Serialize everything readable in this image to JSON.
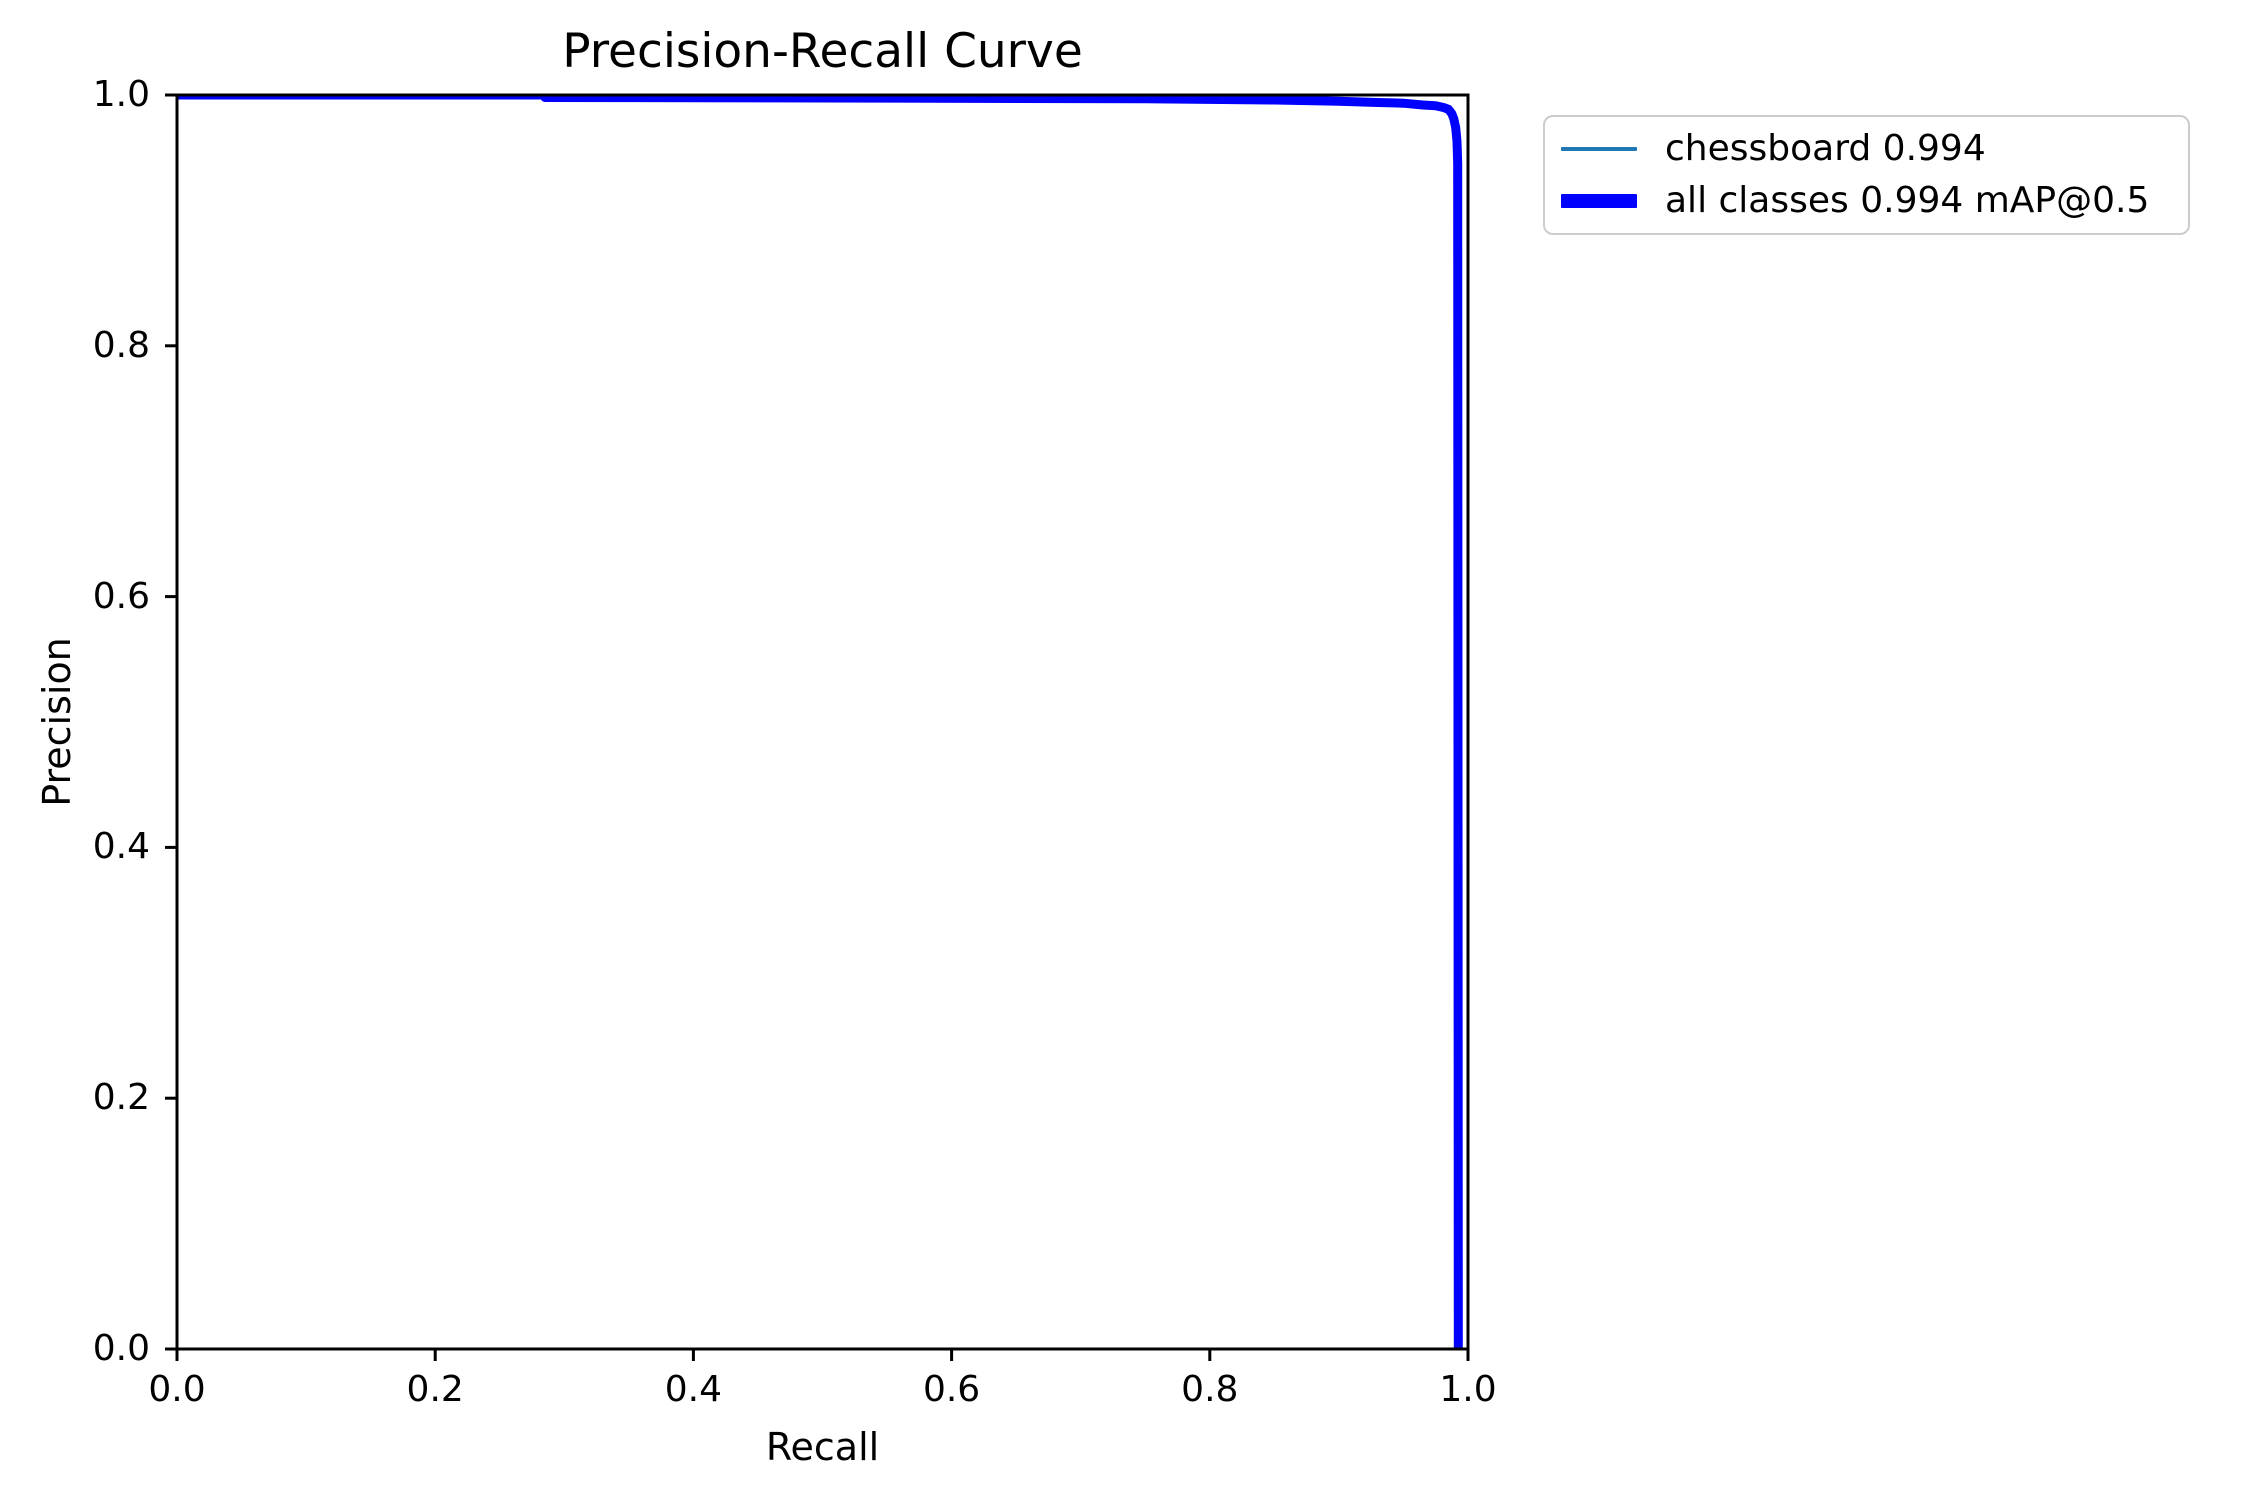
{
  "figure": {
    "title": "Precision-Recall Curve",
    "xlabel": "Recall",
    "ylabel": "Precision"
  },
  "colors": {
    "background": "#ffffff",
    "axes": "#000000",
    "legend_border": "#cccccc",
    "series_chessboard": "#1f77b4",
    "series_all_classes": "#0000ff"
  },
  "chart_data": {
    "type": "line",
    "title": "Precision-Recall Curve",
    "xlabel": "Recall",
    "ylabel": "Precision",
    "xlim": [
      0.0,
      1.0
    ],
    "ylim": [
      0.0,
      1.0
    ],
    "x_ticks": [
      "0.0",
      "0.2",
      "0.4",
      "0.6",
      "0.8",
      "1.0"
    ],
    "y_ticks": [
      "0.0",
      "0.2",
      "0.4",
      "0.6",
      "0.8",
      "1.0"
    ],
    "grid": false,
    "legend_position": "outside upper right",
    "series": [
      {
        "name": "chessboard 0.994",
        "color": "#1f77b4",
        "linewidth": "thin",
        "points": [
          [
            0.0,
            1.0
          ],
          [
            0.285,
            1.0
          ],
          [
            0.285,
            0.998
          ],
          [
            0.55,
            0.9975
          ],
          [
            0.75,
            0.997
          ],
          [
            0.85,
            0.996
          ],
          [
            0.9,
            0.995
          ],
          [
            0.93,
            0.994
          ],
          [
            0.95,
            0.9935
          ],
          [
            0.965,
            0.992
          ],
          [
            0.975,
            0.9915
          ],
          [
            0.981,
            0.99
          ],
          [
            0.985,
            0.9885
          ],
          [
            0.9875,
            0.985
          ],
          [
            0.989,
            0.981
          ],
          [
            0.9905,
            0.974
          ],
          [
            0.9915,
            0.963
          ],
          [
            0.992,
            0.945
          ],
          [
            0.9925,
            0.0
          ]
        ]
      },
      {
        "name": "all classes 0.994 mAP@0.5",
        "color": "#0000ff",
        "linewidth": "thick",
        "points": [
          [
            0.0,
            1.0
          ],
          [
            0.285,
            1.0
          ],
          [
            0.285,
            0.998
          ],
          [
            0.55,
            0.9975
          ],
          [
            0.75,
            0.997
          ],
          [
            0.85,
            0.996
          ],
          [
            0.9,
            0.995
          ],
          [
            0.93,
            0.994
          ],
          [
            0.95,
            0.9935
          ],
          [
            0.965,
            0.992
          ],
          [
            0.975,
            0.9915
          ],
          [
            0.981,
            0.99
          ],
          [
            0.985,
            0.9885
          ],
          [
            0.9875,
            0.985
          ],
          [
            0.989,
            0.981
          ],
          [
            0.9905,
            0.974
          ],
          [
            0.9915,
            0.963
          ],
          [
            0.992,
            0.945
          ],
          [
            0.9925,
            0.0
          ]
        ]
      }
    ]
  }
}
